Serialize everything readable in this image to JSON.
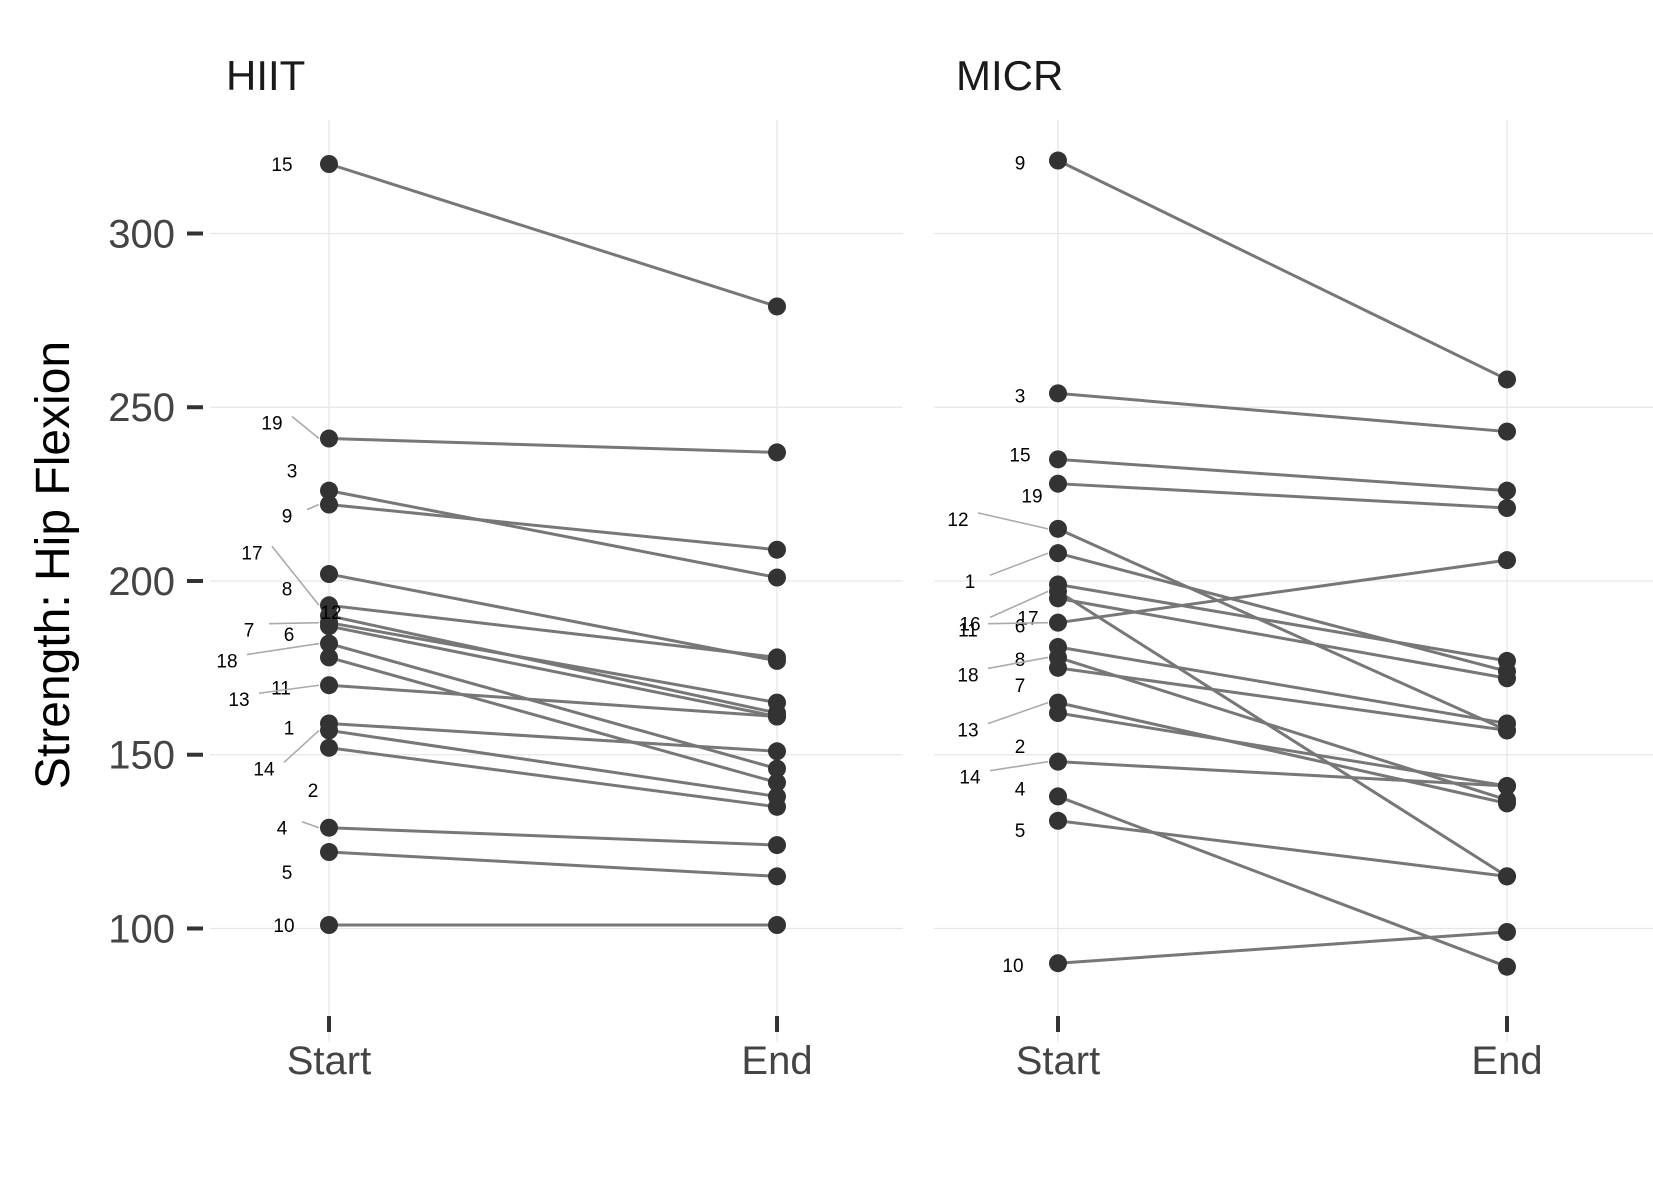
{
  "chart_data": [
    {
      "type": "line",
      "title": "HIIT",
      "ylabel": "Strength: Hip Flexion",
      "xlabel": "",
      "categories": [
        "Start",
        "End"
      ],
      "ylim": [
        76,
        326
      ],
      "yticks": [
        100,
        150,
        200,
        250,
        300
      ],
      "grid": true,
      "participants": [
        {
          "id": "15",
          "values": [
            320,
            279
          ]
        },
        {
          "id": "19",
          "values": [
            241,
            237
          ]
        },
        {
          "id": "3",
          "values": [
            226,
            201
          ]
        },
        {
          "id": "9",
          "values": [
            222,
            209
          ]
        },
        {
          "id": "12",
          "values": [
            202,
            177
          ]
        },
        {
          "id": "17",
          "values": [
            193,
            178
          ]
        },
        {
          "id": "8",
          "values": [
            190,
            162
          ]
        },
        {
          "id": "7",
          "values": [
            188,
            165
          ]
        },
        {
          "id": "6",
          "values": [
            187,
            161
          ]
        },
        {
          "id": "18",
          "values": [
            182,
            146
          ]
        },
        {
          "id": "11",
          "values": [
            178,
            142
          ]
        },
        {
          "id": "13",
          "values": [
            170,
            161
          ]
        },
        {
          "id": "1",
          "values": [
            159,
            151
          ]
        },
        {
          "id": "14",
          "values": [
            157,
            138
          ]
        },
        {
          "id": "2",
          "values": [
            152,
            135
          ]
        },
        {
          "id": "4",
          "values": [
            129,
            124
          ]
        },
        {
          "id": "5",
          "values": [
            122,
            115
          ]
        },
        {
          "id": "10",
          "values": [
            101,
            101
          ]
        }
      ]
    },
    {
      "type": "line",
      "title": "MICR",
      "ylabel": "",
      "xlabel": "",
      "categories": [
        "Start",
        "End"
      ],
      "ylim": [
        76,
        326
      ],
      "yticks": [
        100,
        150,
        200,
        250,
        300
      ],
      "grid": true,
      "participants": [
        {
          "id": "9",
          "values": [
            321,
            258
          ]
        },
        {
          "id": "3",
          "values": [
            254,
            243
          ]
        },
        {
          "id": "15",
          "values": [
            235,
            226
          ]
        },
        {
          "id": "19",
          "values": [
            228,
            221
          ]
        },
        {
          "id": "12",
          "values": [
            215,
            157
          ]
        },
        {
          "id": "1",
          "values": [
            208,
            174
          ]
        },
        {
          "id": "17",
          "values": [
            199,
            177
          ]
        },
        {
          "id": "16",
          "values": [
            197,
            115
          ]
        },
        {
          "id": "6",
          "values": [
            195,
            172
          ]
        },
        {
          "id": "11",
          "values": [
            188,
            206
          ]
        },
        {
          "id": "8",
          "values": [
            181,
            159
          ]
        },
        {
          "id": "18",
          "values": [
            178,
            137
          ]
        },
        {
          "id": "7",
          "values": [
            175,
            157
          ]
        },
        {
          "id": "13",
          "values": [
            165,
            136
          ]
        },
        {
          "id": "2",
          "values": [
            162,
            141
          ]
        },
        {
          "id": "14",
          "values": [
            148,
            141
          ]
        },
        {
          "id": "4",
          "values": [
            138,
            89
          ]
        },
        {
          "id": "5",
          "values": [
            131,
            115
          ]
        },
        {
          "id": "10",
          "values": [
            90,
            99
          ]
        }
      ]
    }
  ]
}
